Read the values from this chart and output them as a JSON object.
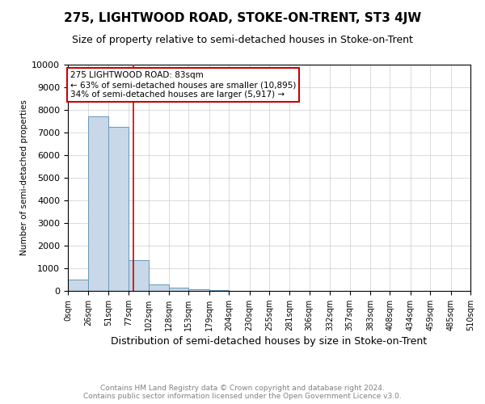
{
  "title": "275, LIGHTWOOD ROAD, STOKE-ON-TRENT, ST3 4JW",
  "subtitle": "Size of property relative to semi-detached houses in Stoke-on-Trent",
  "xlabel": "Distribution of semi-detached houses by size in Stoke-on-Trent",
  "ylabel": "Number of semi-detached properties",
  "footer": "Contains HM Land Registry data © Crown copyright and database right 2024.\nContains public sector information licensed under the Open Government Licence v3.0.",
  "bin_edges": [
    0,
    26,
    51,
    77,
    102,
    128,
    153,
    179,
    204,
    230,
    255,
    281,
    306,
    332,
    357,
    383,
    408,
    434,
    459,
    485,
    510
  ],
  "bar_heights": [
    500,
    7700,
    7250,
    1350,
    300,
    150,
    75,
    50,
    0,
    0,
    0,
    0,
    0,
    0,
    0,
    0,
    0,
    0,
    0,
    0
  ],
  "property_size": 83,
  "pct_smaller": 63,
  "pct_larger": 34,
  "n_smaller": "10,895",
  "n_larger": "5,917",
  "bar_color": "#c8d8e8",
  "bar_edge_color": "#6699bb",
  "marker_color": "#cc0000",
  "annotation_box_color": "#ffffff",
  "annotation_box_edge": "#cc0000",
  "ylim": [
    0,
    10000
  ],
  "yticks": [
    0,
    1000,
    2000,
    3000,
    4000,
    5000,
    6000,
    7000,
    8000,
    9000,
    10000
  ],
  "background_color": "#ffffff",
  "grid_color": "#cccccc",
  "title_fontsize": 11,
  "subtitle_fontsize": 9,
  "xlabel_fontsize": 9,
  "ylabel_fontsize": 7.5,
  "xtick_fontsize": 7,
  "ytick_fontsize": 8,
  "footer_fontsize": 6.5,
  "ann_fontsize": 7.5
}
